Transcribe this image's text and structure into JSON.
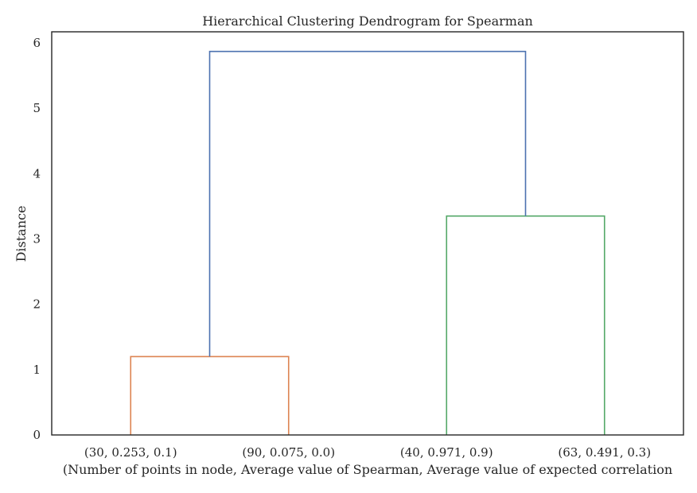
{
  "chart_data": {
    "type": "dendrogram",
    "title": "Hierarchical Clustering Dendrogram for Spearman",
    "xlabel": "(Number of points in node, Average value of Spearman, Average value of expected correlation",
    "ylabel": "Distance",
    "ylim": [
      0,
      6.17
    ],
    "yticks": [
      0,
      1,
      2,
      3,
      4,
      5,
      6
    ],
    "grid": false,
    "leaves": [
      "(30, 0.253, 0.1)",
      "(90, 0.075, 0.0)",
      "(40, 0.971, 0.9)",
      "(63, 0.491, 0.3)"
    ],
    "links": [
      {
        "left": 0,
        "right": 1,
        "height": 1.2,
        "color": "#dd8452"
      },
      {
        "left": 2,
        "right": 3,
        "height": 3.35,
        "color": "#55a868"
      },
      {
        "left": 4,
        "right": 5,
        "height": 5.87,
        "color": "#4c72b0"
      }
    ]
  },
  "colors": {
    "axes": "#262626",
    "background": "#ffffff"
  }
}
